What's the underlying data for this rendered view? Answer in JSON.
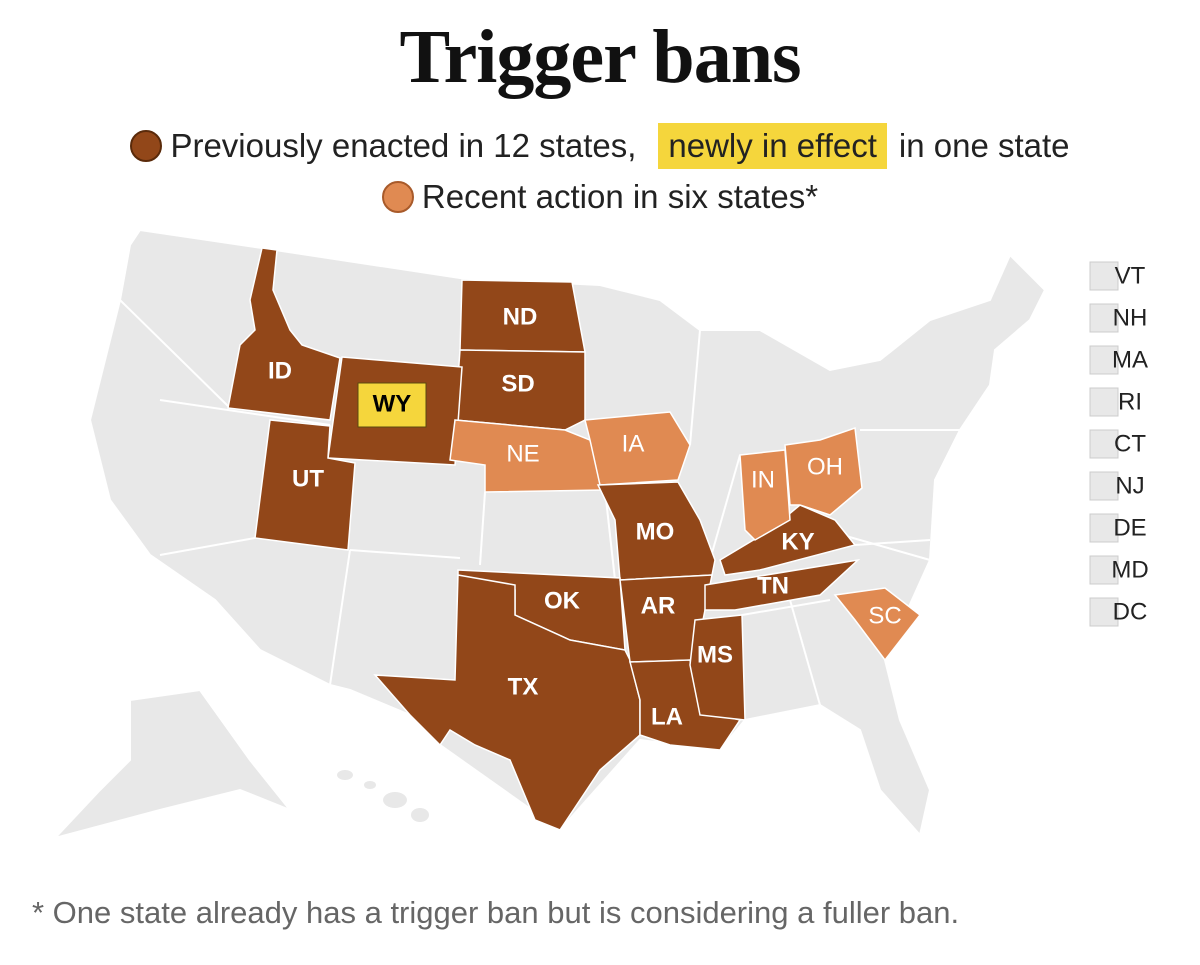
{
  "title": "Trigger bans",
  "legend": [
    {
      "color": "#924719",
      "text": "Previously enacted in 12 states,",
      "highlight": "newly in effect",
      "highlight_color": "#f5d63c",
      "text_after": "in one state"
    },
    {
      "color": "#e08a52",
      "text": "Recent action in six states*"
    }
  ],
  "base_color": "#e8e8e8",
  "states": [
    {
      "label": "ND",
      "color": "#924719"
    },
    {
      "label": "SD",
      "color": "#924719"
    },
    {
      "label": "ID",
      "color": "#924719"
    },
    {
      "label": "WY",
      "color": "#924719",
      "label_background": "#f5d63c"
    },
    {
      "label": "UT",
      "color": "#924719"
    },
    {
      "label": "NE",
      "color": "#e08a52"
    },
    {
      "label": "IA",
      "color": "#e08a52"
    },
    {
      "label": "MO",
      "color": "#924719"
    },
    {
      "label": "OK",
      "color": "#924719"
    },
    {
      "label": "TX",
      "color": "#924719"
    },
    {
      "label": "AR",
      "color": "#924719"
    },
    {
      "label": "LA",
      "color": "#924719"
    },
    {
      "label": "MS",
      "color": "#924719"
    },
    {
      "label": "TN",
      "color": "#924719"
    },
    {
      "label": "KY",
      "color": "#924719"
    },
    {
      "label": "IN",
      "color": "#e08a52"
    },
    {
      "label": "OH",
      "color": "#e08a52"
    },
    {
      "label": "SC",
      "color": "#e08a52"
    }
  ],
  "small_states": [
    "VT",
    "NH",
    "MA",
    "RI",
    "CT",
    "NJ",
    "DE",
    "MD",
    "DC"
  ],
  "footnote": "* One state already has a trigger ban but is considering a fuller ban."
}
